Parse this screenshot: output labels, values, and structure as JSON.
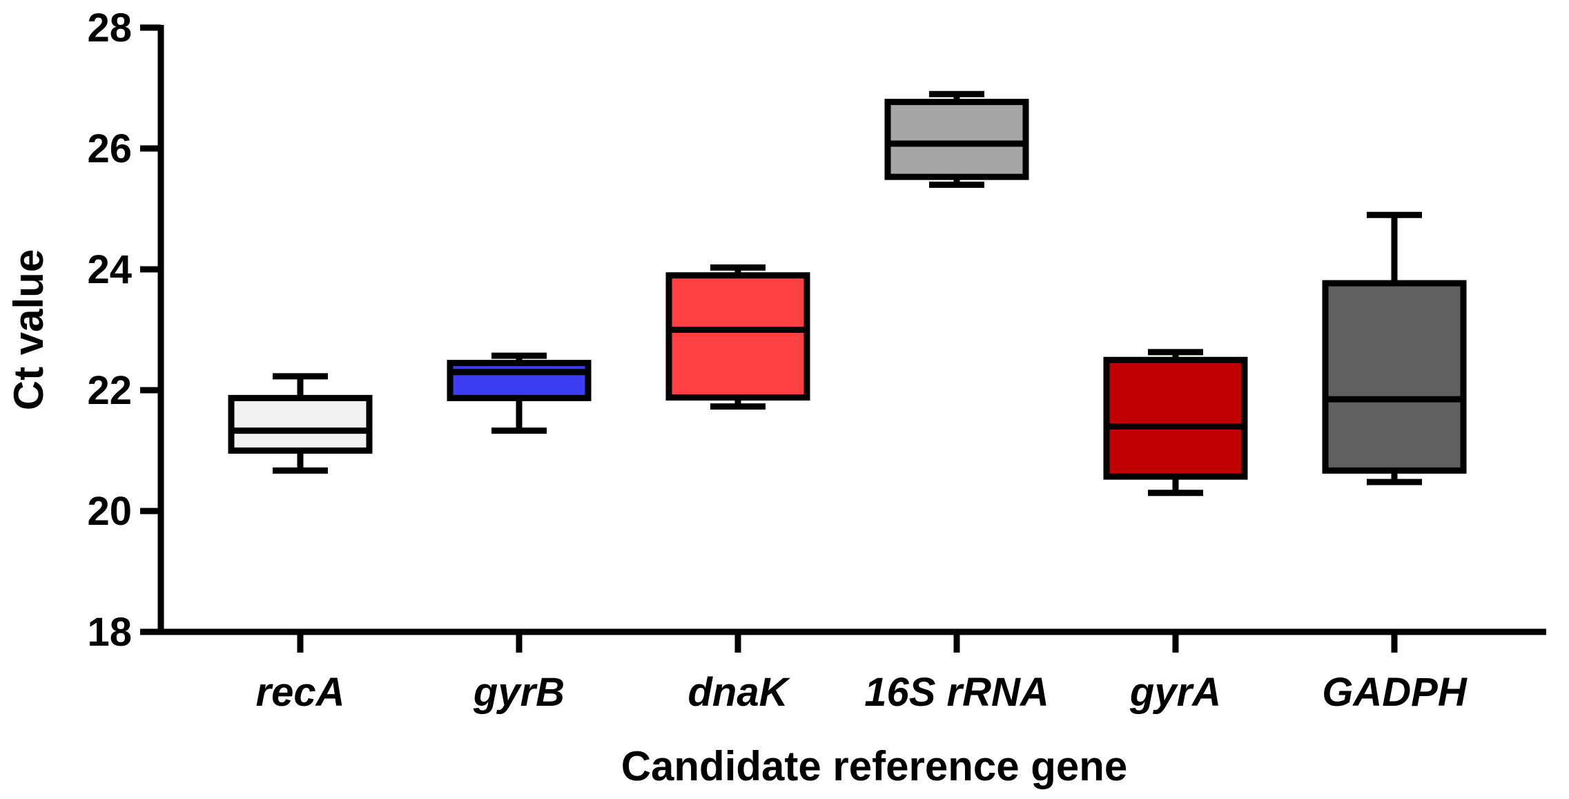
{
  "chart_data": {
    "type": "box",
    "xlabel": "Candidate reference gene",
    "ylabel": "Ct value",
    "ylim": [
      18,
      28
    ],
    "yticks": [
      18,
      20,
      22,
      24,
      26,
      28
    ],
    "grid": false,
    "series": [
      {
        "name": "recA",
        "min": 20.67,
        "q1": 21.0,
        "median": 21.33,
        "q3": 21.87,
        "max": 22.23,
        "color": "#f2f2f2"
      },
      {
        "name": "gyrB",
        "min": 21.33,
        "q1": 21.87,
        "median": 22.3,
        "q3": 22.45,
        "max": 22.57,
        "color": "#3c3cf0"
      },
      {
        "name": "dnaK",
        "min": 21.73,
        "q1": 21.88,
        "median": 23.0,
        "q3": 23.9,
        "max": 24.03,
        "color": "#ff4040"
      },
      {
        "name": "16S rRNA",
        "min": 25.4,
        "q1": 25.53,
        "median": 26.08,
        "q3": 26.77,
        "max": 26.9,
        "color": "#a6a6a6"
      },
      {
        "name": "gyrA",
        "min": 20.3,
        "q1": 20.57,
        "median": 21.4,
        "q3": 22.5,
        "max": 22.63,
        "color": "#c00000"
      },
      {
        "name": "GADPH",
        "min": 20.48,
        "q1": 20.67,
        "median": 21.85,
        "q3": 23.77,
        "max": 24.9,
        "color": "#606060"
      }
    ]
  }
}
